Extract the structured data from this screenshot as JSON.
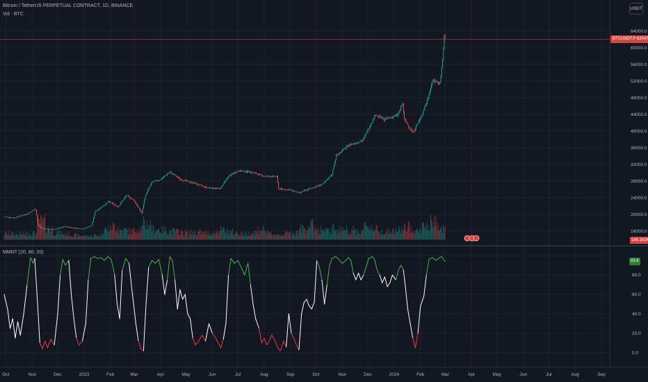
{
  "legend": {
    "title": "Bitcoin / TetherUS PERPETUAL CONTRACT, 1D, BINANCE",
    "volume": "Vol · BTC",
    "indicator": "MMNT (20, 80, 20)"
  },
  "toolbar": {
    "currency": "USDT"
  },
  "colors": {
    "background": "#131722",
    "up": "#26a69a",
    "down": "#ef5350",
    "overbought": "#4caf50",
    "oversold": "#f23645",
    "neutral": "#ffffff",
    "grid": "#1e222d",
    "price_line": "#b83737"
  },
  "chart_data": [
    {
      "type": "candlestick",
      "title": "Bitcoin / TetherUS PERPETUAL CONTRACT, 1D, BINANCE",
      "y_ticks": [
        16000,
        20000,
        24000,
        28000,
        32000,
        36000,
        40000,
        44000,
        48000,
        52000,
        56000,
        60000,
        64000
      ],
      "y_tick_labels": [
        "16000.0",
        "20000.0",
        "24000.0",
        "28000.0",
        "32000.0",
        "36000.0",
        "40000.0",
        "44000.0",
        "48000.0",
        "52000.0",
        "56000.0",
        "60000.0",
        "64000.0"
      ],
      "ylim": [
        14000,
        66500
      ],
      "last_price": 62047.1,
      "last_price_label": "BTCUSDT.P  62047.1",
      "x_labels": [
        "Oct",
        "Nov",
        "Dec",
        "2023",
        "Feb",
        "Mar",
        "Apr",
        "May",
        "Jun",
        "Jul",
        "Aug",
        "Sep",
        "Oct",
        "Nov",
        "Dec",
        "2024",
        "Feb",
        "Mar",
        "Apr",
        "May",
        "Jun",
        "Jul",
        "Aug",
        "Sep"
      ],
      "x_label_dates": [
        "2022-10-01",
        "2022-11-01",
        "2022-12-01",
        "2023-01-01",
        "2023-02-01",
        "2023-03-01",
        "2023-04-01",
        "2023-05-01",
        "2023-06-01",
        "2023-07-01",
        "2023-08-01",
        "2023-09-01",
        "2023-10-01",
        "2023-11-01",
        "2023-12-01",
        "2024-01-01",
        "2024-02-01",
        "2024-03-01",
        "2024-04-01",
        "2024-05-01",
        "2024-06-01",
        "2024-07-01",
        "2024-08-01",
        "2024-09-01"
      ],
      "close_series": [
        [
          "2022-09-29",
          19500
        ],
        [
          "2022-10-10",
          19200
        ],
        [
          "2022-10-25",
          20100
        ],
        [
          "2022-11-05",
          21300
        ],
        [
          "2022-11-08",
          17500
        ],
        [
          "2022-11-12",
          16700
        ],
        [
          "2022-11-25",
          16400
        ],
        [
          "2022-12-10",
          17100
        ],
        [
          "2022-12-20",
          16800
        ],
        [
          "2022-12-31",
          16550
        ],
        [
          "2023-01-10",
          17400
        ],
        [
          "2023-01-14",
          20700
        ],
        [
          "2023-01-20",
          21600
        ],
        [
          "2023-01-30",
          23100
        ],
        [
          "2023-02-10",
          21900
        ],
        [
          "2023-02-20",
          24600
        ],
        [
          "2023-03-01",
          23400
        ],
        [
          "2023-03-10",
          20300
        ],
        [
          "2023-03-14",
          24500
        ],
        [
          "2023-03-22",
          27800
        ],
        [
          "2023-04-01",
          28400
        ],
        [
          "2023-04-12",
          30200
        ],
        [
          "2023-04-25",
          28400
        ],
        [
          "2023-05-10",
          27600
        ],
        [
          "2023-05-25",
          26500
        ],
        [
          "2023-06-10",
          26200
        ],
        [
          "2023-06-20",
          29200
        ],
        [
          "2023-07-01",
          30500
        ],
        [
          "2023-07-15",
          30300
        ],
        [
          "2023-08-01",
          29200
        ],
        [
          "2023-08-16",
          29100
        ],
        [
          "2023-08-18",
          26200
        ],
        [
          "2023-09-01",
          25900
        ],
        [
          "2023-09-11",
          25200
        ],
        [
          "2023-09-25",
          26300
        ],
        [
          "2023-10-10",
          27400
        ],
        [
          "2023-10-20",
          29800
        ],
        [
          "2023-10-25",
          34200
        ],
        [
          "2023-11-09",
          36700
        ],
        [
          "2023-11-25",
          37800
        ],
        [
          "2023-12-05",
          42000
        ],
        [
          "2023-12-10",
          44000
        ],
        [
          "2023-12-20",
          42800
        ],
        [
          "2024-01-05",
          43900
        ],
        [
          "2024-01-11",
          46600
        ],
        [
          "2024-01-13",
          42800
        ],
        [
          "2024-01-23",
          39700
        ],
        [
          "2024-02-01",
          43100
        ],
        [
          "2024-02-09",
          47400
        ],
        [
          "2024-02-15",
          52100
        ],
        [
          "2024-02-24",
          51600
        ],
        [
          "2024-02-27",
          57100
        ],
        [
          "2024-02-29",
          62700
        ],
        [
          "2024-03-01",
          62047.1
        ]
      ]
    },
    {
      "type": "bar",
      "title": "Vol · BTC",
      "last_value_label": "145.162K",
      "values_relative": [
        0.32,
        0.28,
        0.3,
        0.35,
        0.95,
        0.6,
        0.38,
        0.3,
        0.25,
        0.22,
        0.2,
        0.24,
        0.55,
        0.7,
        0.5,
        0.45,
        0.6,
        0.85,
        0.55,
        0.5,
        0.45,
        0.42,
        0.38,
        0.4,
        0.35,
        0.36,
        0.5,
        0.42,
        0.35,
        0.3,
        0.4,
        0.55,
        0.32,
        0.3,
        0.34,
        0.38,
        0.6,
        0.75,
        0.55,
        0.45,
        0.6,
        0.55,
        0.5,
        0.45,
        0.72,
        0.55,
        0.45,
        0.42,
        0.55,
        0.65,
        0.5,
        0.7,
        0.9,
        0.6
      ]
    },
    {
      "type": "line",
      "title": "MMNT (20, 80, 20)",
      "y_ticks": [
        0,
        20,
        40,
        60,
        80,
        100
      ],
      "y_tick_labels": [
        "0.0",
        "20.0",
        "40.0",
        "60.0",
        "80.0",
        "100.0"
      ],
      "ylim": [
        -3,
        100
      ],
      "levels": {
        "oversold": 20,
        "overbought": 80
      },
      "last_value": 93.8,
      "last_value_label": "93.8",
      "series": [
        [
          "2022-09-29",
          60
        ],
        [
          "2022-10-03",
          45
        ],
        [
          "2022-10-06",
          25
        ],
        [
          "2022-10-09",
          35
        ],
        [
          "2022-10-12",
          15
        ],
        [
          "2022-10-15",
          32
        ],
        [
          "2022-10-18",
          18
        ],
        [
          "2022-10-22",
          40
        ],
        [
          "2022-10-26",
          70
        ],
        [
          "2022-10-30",
          98
        ],
        [
          "2022-11-02",
          92
        ],
        [
          "2022-11-04",
          97
        ],
        [
          "2022-11-07",
          55
        ],
        [
          "2022-11-10",
          10
        ],
        [
          "2022-11-13",
          4
        ],
        [
          "2022-11-16",
          12
        ],
        [
          "2022-11-19",
          5
        ],
        [
          "2022-11-23",
          14
        ],
        [
          "2022-11-27",
          8
        ],
        [
          "2022-12-01",
          40
        ],
        [
          "2022-12-04",
          80
        ],
        [
          "2022-12-07",
          96
        ],
        [
          "2022-12-10",
          90
        ],
        [
          "2022-12-14",
          95
        ],
        [
          "2022-12-17",
          60
        ],
        [
          "2022-12-20",
          35
        ],
        [
          "2022-12-23",
          15
        ],
        [
          "2022-12-26",
          8
        ],
        [
          "2022-12-30",
          12
        ],
        [
          "2023-01-03",
          30
        ],
        [
          "2023-01-06",
          75
        ],
        [
          "2023-01-09",
          97
        ],
        [
          "2023-01-13",
          99
        ],
        [
          "2023-01-17",
          97
        ],
        [
          "2023-01-21",
          98
        ],
        [
          "2023-01-25",
          95
        ],
        [
          "2023-01-29",
          99
        ],
        [
          "2023-02-02",
          96
        ],
        [
          "2023-02-06",
          80
        ],
        [
          "2023-02-09",
          50
        ],
        [
          "2023-02-12",
          35
        ],
        [
          "2023-02-15",
          85
        ],
        [
          "2023-02-19",
          97
        ],
        [
          "2023-02-23",
          92
        ],
        [
          "2023-02-27",
          60
        ],
        [
          "2023-03-03",
          30
        ],
        [
          "2023-03-06",
          12
        ],
        [
          "2023-03-09",
          4
        ],
        [
          "2023-03-12",
          2
        ],
        [
          "2023-03-15",
          50
        ],
        [
          "2023-03-18",
          88
        ],
        [
          "2023-03-22",
          95
        ],
        [
          "2023-03-26",
          92
        ],
        [
          "2023-03-30",
          96
        ],
        [
          "2023-04-03",
          80
        ],
        [
          "2023-04-06",
          60
        ],
        [
          "2023-04-09",
          75
        ],
        [
          "2023-04-12",
          99
        ],
        [
          "2023-04-15",
          95
        ],
        [
          "2023-04-18",
          75
        ],
        [
          "2023-04-21",
          45
        ],
        [
          "2023-04-24",
          65
        ],
        [
          "2023-04-27",
          55
        ],
        [
          "2023-04-30",
          60
        ],
        [
          "2023-05-03",
          40
        ],
        [
          "2023-05-06",
          35
        ],
        [
          "2023-05-09",
          15
        ],
        [
          "2023-05-12",
          8
        ],
        [
          "2023-05-16",
          12
        ],
        [
          "2023-05-20",
          18
        ],
        [
          "2023-05-24",
          12
        ],
        [
          "2023-05-28",
          30
        ],
        [
          "2023-06-01",
          20
        ],
        [
          "2023-06-05",
          15
        ],
        [
          "2023-06-08",
          10
        ],
        [
          "2023-06-11",
          5
        ],
        [
          "2023-06-14",
          14
        ],
        [
          "2023-06-17",
          30
        ],
        [
          "2023-06-20",
          80
        ],
        [
          "2023-06-23",
          97
        ],
        [
          "2023-06-27",
          92
        ],
        [
          "2023-07-01",
          95
        ],
        [
          "2023-07-05",
          88
        ],
        [
          "2023-07-09",
          80
        ],
        [
          "2023-07-13",
          92
        ],
        [
          "2023-07-16",
          70
        ],
        [
          "2023-07-19",
          50
        ],
        [
          "2023-07-22",
          35
        ],
        [
          "2023-07-26",
          25
        ],
        [
          "2023-07-29",
          10
        ],
        [
          "2023-08-01",
          15
        ],
        [
          "2023-08-04",
          8
        ],
        [
          "2023-08-07",
          12
        ],
        [
          "2023-08-10",
          18
        ],
        [
          "2023-08-14",
          12
        ],
        [
          "2023-08-17",
          5
        ],
        [
          "2023-08-20",
          2
        ],
        [
          "2023-08-24",
          12
        ],
        [
          "2023-08-27",
          6
        ],
        [
          "2023-08-30",
          40
        ],
        [
          "2023-09-02",
          20
        ],
        [
          "2023-09-05",
          15
        ],
        [
          "2023-09-08",
          8
        ],
        [
          "2023-09-11",
          3
        ],
        [
          "2023-09-14",
          40
        ],
        [
          "2023-09-17",
          52
        ],
        [
          "2023-09-20",
          55
        ],
        [
          "2023-09-23",
          48
        ],
        [
          "2023-09-26",
          45
        ],
        [
          "2023-09-29",
          52
        ],
        [
          "2023-10-02",
          95
        ],
        [
          "2023-10-05",
          88
        ],
        [
          "2023-10-08",
          75
        ],
        [
          "2023-10-11",
          50
        ],
        [
          "2023-10-14",
          70
        ],
        [
          "2023-10-17",
          90
        ],
        [
          "2023-10-20",
          97
        ],
        [
          "2023-10-24",
          99
        ],
        [
          "2023-10-28",
          96
        ],
        [
          "2023-11-01",
          92
        ],
        [
          "2023-11-05",
          95
        ],
        [
          "2023-11-08",
          98
        ],
        [
          "2023-11-11",
          95
        ],
        [
          "2023-11-14",
          82
        ],
        [
          "2023-11-17",
          75
        ],
        [
          "2023-11-20",
          82
        ],
        [
          "2023-11-23",
          75
        ],
        [
          "2023-11-26",
          80
        ],
        [
          "2023-11-29",
          88
        ],
        [
          "2023-12-02",
          97
        ],
        [
          "2023-12-06",
          99
        ],
        [
          "2023-12-09",
          96
        ],
        [
          "2023-12-12",
          85
        ],
        [
          "2023-12-15",
          80
        ],
        [
          "2023-12-18",
          72
        ],
        [
          "2023-12-21",
          78
        ],
        [
          "2023-12-24",
          68
        ],
        [
          "2023-12-27",
          72
        ],
        [
          "2023-12-30",
          80
        ],
        [
          "2024-01-03",
          75
        ],
        [
          "2024-01-06",
          85
        ],
        [
          "2024-01-09",
          90
        ],
        [
          "2024-01-12",
          85
        ],
        [
          "2024-01-14",
          70
        ],
        [
          "2024-01-17",
          45
        ],
        [
          "2024-01-20",
          30
        ],
        [
          "2024-01-23",
          15
        ],
        [
          "2024-01-26",
          5
        ],
        [
          "2024-01-29",
          20
        ],
        [
          "2024-02-01",
          48
        ],
        [
          "2024-02-05",
          58
        ],
        [
          "2024-02-08",
          80
        ],
        [
          "2024-02-11",
          96
        ],
        [
          "2024-02-15",
          98
        ],
        [
          "2024-02-19",
          95
        ],
        [
          "2024-02-22",
          97
        ],
        [
          "2024-02-26",
          99
        ],
        [
          "2024-03-01",
          93.8
        ]
      ]
    }
  ]
}
